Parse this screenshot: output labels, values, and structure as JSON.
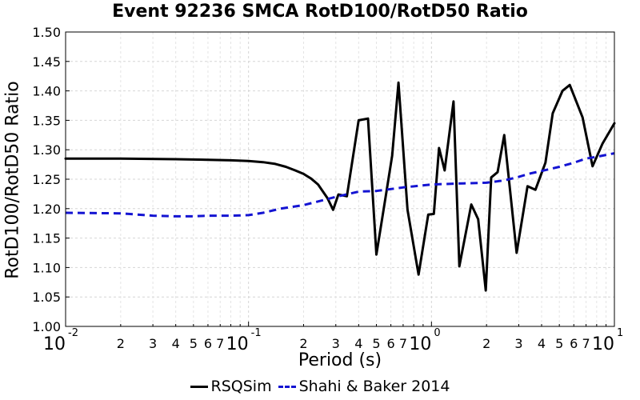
{
  "chart_data": {
    "type": "line",
    "title": "Event 92236 SMCA RotD100/RotD50 Ratio",
    "xlabel": "Period (s)",
    "ylabel": "RotD100/RotD50 Ratio",
    "xscale": "log",
    "xlim": [
      0.01,
      10
    ],
    "ylim": [
      1.0,
      1.5
    ],
    "grid": true,
    "legend_position": "bottom-center",
    "y_ticks": [
      "1.00",
      "1.05",
      "1.10",
      "1.15",
      "1.20",
      "1.25",
      "1.30",
      "1.35",
      "1.40",
      "1.45",
      "1.50"
    ],
    "x_major_ticks": [
      {
        "value": 0.01,
        "base": "10",
        "exp": "-2"
      },
      {
        "value": 0.1,
        "base": "10",
        "exp": "-1"
      },
      {
        "value": 1,
        "base": "10",
        "exp": "0"
      },
      {
        "value": 10,
        "base": "10",
        "exp": "1"
      }
    ],
    "x_minor_labels": [
      "2",
      "3",
      "4",
      "5",
      "6",
      "7"
    ],
    "series": [
      {
        "name": "RSQSim",
        "color": "#000000",
        "style": "solid",
        "points": [
          [
            0.01,
            1.285
          ],
          [
            0.02,
            1.285
          ],
          [
            0.04,
            1.284
          ],
          [
            0.06,
            1.283
          ],
          [
            0.08,
            1.282
          ],
          [
            0.1,
            1.281
          ],
          [
            0.12,
            1.279
          ],
          [
            0.14,
            1.276
          ],
          [
            0.16,
            1.271
          ],
          [
            0.18,
            1.265
          ],
          [
            0.2,
            1.259
          ],
          [
            0.22,
            1.251
          ],
          [
            0.24,
            1.241
          ],
          [
            0.27,
            1.218
          ],
          [
            0.29,
            1.198
          ],
          [
            0.31,
            1.224
          ],
          [
            0.345,
            1.221
          ],
          [
            0.4,
            1.35
          ],
          [
            0.45,
            1.353
          ],
          [
            0.5,
            1.122
          ],
          [
            0.56,
            1.218
          ],
          [
            0.61,
            1.29
          ],
          [
            0.66,
            1.414
          ],
          [
            0.74,
            1.198
          ],
          [
            0.85,
            1.088
          ],
          [
            0.96,
            1.19
          ],
          [
            1.03,
            1.191
          ],
          [
            1.1,
            1.303
          ],
          [
            1.18,
            1.265
          ],
          [
            1.32,
            1.382
          ],
          [
            1.42,
            1.102
          ],
          [
            1.65,
            1.207
          ],
          [
            1.8,
            1.182
          ],
          [
            1.98,
            1.061
          ],
          [
            2.12,
            1.253
          ],
          [
            2.3,
            1.262
          ],
          [
            2.5,
            1.325
          ],
          [
            2.92,
            1.125
          ],
          [
            3.35,
            1.238
          ],
          [
            3.7,
            1.232
          ],
          [
            4.2,
            1.278
          ],
          [
            4.6,
            1.362
          ],
          [
            5.2,
            1.4
          ],
          [
            5.7,
            1.41
          ],
          [
            6.7,
            1.355
          ],
          [
            7.6,
            1.272
          ],
          [
            8.6,
            1.31
          ],
          [
            10.0,
            1.345
          ]
        ]
      },
      {
        "name": "Shahi & Baker 2014",
        "color": "#1414d2",
        "style": "dashed",
        "points": [
          [
            0.01,
            1.193
          ],
          [
            0.02,
            1.192
          ],
          [
            0.03,
            1.188
          ],
          [
            0.04,
            1.187
          ],
          [
            0.05,
            1.187
          ],
          [
            0.06,
            1.188
          ],
          [
            0.08,
            1.188
          ],
          [
            0.1,
            1.189
          ],
          [
            0.12,
            1.193
          ],
          [
            0.15,
            1.2
          ],
          [
            0.2,
            1.206
          ],
          [
            0.3,
            1.22
          ],
          [
            0.4,
            1.229
          ],
          [
            0.5,
            1.23
          ],
          [
            0.7,
            1.236
          ],
          [
            1.0,
            1.241
          ],
          [
            1.5,
            1.243
          ],
          [
            2.0,
            1.244
          ],
          [
            2.5,
            1.248
          ],
          [
            3.0,
            1.254
          ],
          [
            3.5,
            1.26
          ],
          [
            4.0,
            1.264
          ],
          [
            5.0,
            1.271
          ],
          [
            6.0,
            1.278
          ],
          [
            7.0,
            1.285
          ],
          [
            8.0,
            1.288
          ],
          [
            10.0,
            1.294
          ]
        ]
      }
    ]
  }
}
